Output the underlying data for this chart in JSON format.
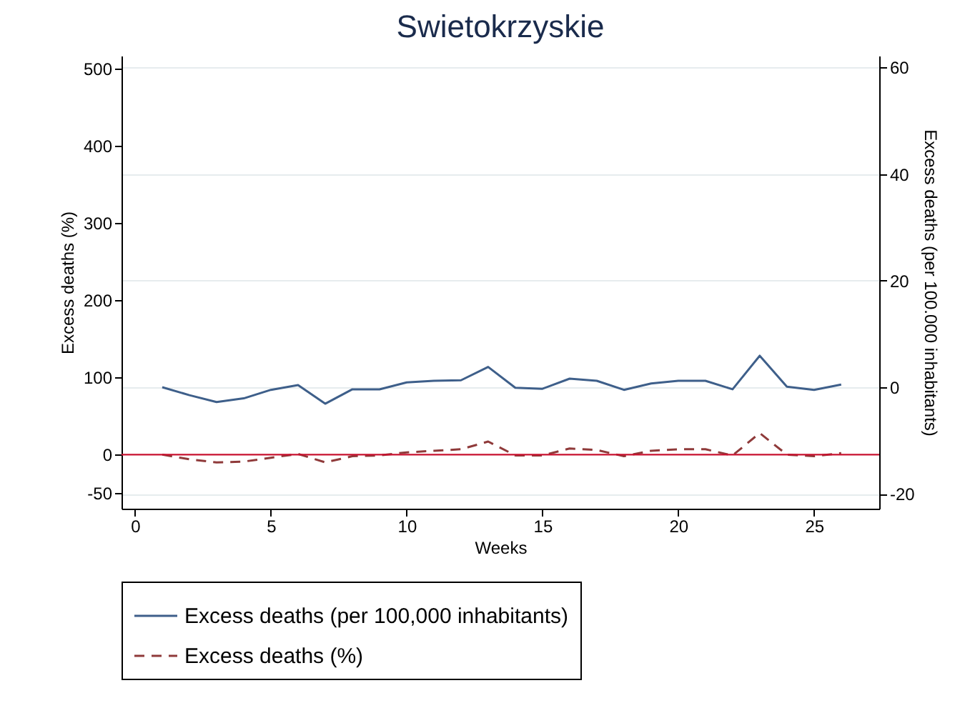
{
  "chart_data": {
    "type": "line",
    "title": "Swietokrzyskie",
    "xlabel": "Weeks",
    "ylabel": "Excess deaths (%)",
    "y2label": "Excess deaths (per 100.000 inhabitants)",
    "x": [
      1,
      2,
      3,
      4,
      5,
      6,
      7,
      8,
      9,
      10,
      11,
      12,
      13,
      14,
      15,
      16,
      17,
      18,
      19,
      20,
      21,
      22,
      23,
      24,
      25,
      26
    ],
    "series": [
      {
        "name": "Excess deaths (per 100,000 inhabitants)",
        "color": "#3e5f8a",
        "axis": "y2",
        "line_style": "solid",
        "values": [
          0,
          -1.5,
          -2.8,
          -2.1,
          -0.5,
          0.4,
          -3.1,
          -0.4,
          -0.4,
          0.9,
          1.2,
          1.3,
          3.8,
          -0.1,
          -0.3,
          1.6,
          1.2,
          -0.5,
          0.7,
          1.2,
          1.2,
          -0.4,
          5.9,
          0.1,
          -0.5,
          0.5
        ]
      },
      {
        "name": "Excess deaths (%)",
        "color": "#8f3a3a",
        "axis": "y",
        "line_style": "dashed",
        "values": [
          0,
          -6,
          -10,
          -9,
          -4,
          1,
          -10,
          -2,
          -1,
          3,
          5,
          7,
          17,
          -1,
          -1,
          8,
          6,
          -2,
          5,
          7,
          7,
          -1,
          28,
          0,
          -2,
          2
        ]
      }
    ],
    "xlim": [
      -0.5,
      27.4
    ],
    "xticks": [
      0,
      5,
      10,
      15,
      20,
      25
    ],
    "ylim": [
      -70,
      517
    ],
    "yticks": [
      -50,
      0,
      100,
      200,
      300,
      400,
      500
    ],
    "y2lim": [
      -22.8,
      62.2
    ],
    "y2ticks": [
      -20,
      0,
      20,
      40,
      60
    ],
    "ref_lines": [
      {
        "axis": "y",
        "value": 0,
        "color": "#c8102e"
      }
    ],
    "grid": "y",
    "legend": "bottom",
    "marker": "none"
  }
}
